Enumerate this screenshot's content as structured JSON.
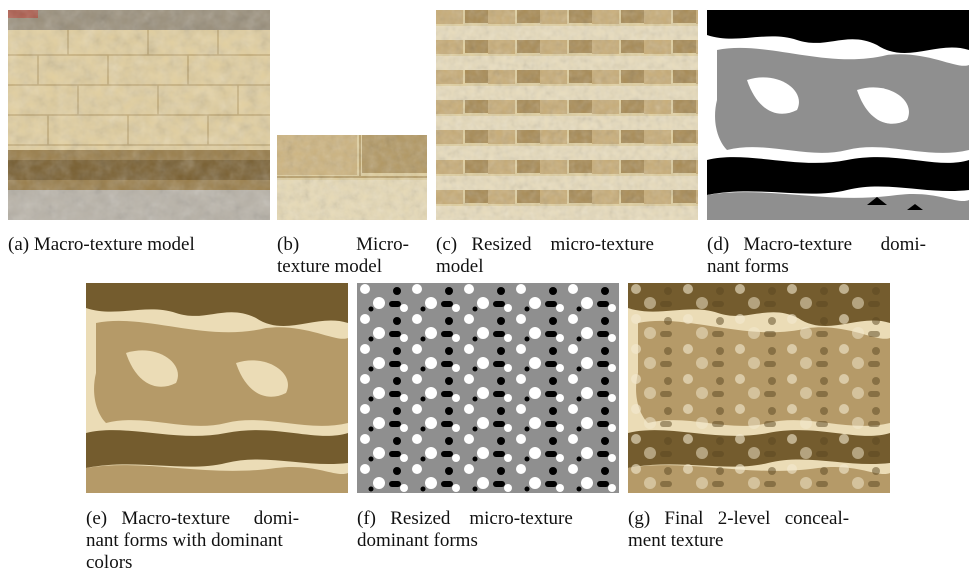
{
  "figure": {
    "panels": [
      {
        "id": "a",
        "caption": "(a) Macro-texture model",
        "lines": [
          "(a) Macro-texture model"
        ]
      },
      {
        "id": "b",
        "caption": "(b) Micro-texture model",
        "lines": [
          "(b)            Micro-",
          "texture model"
        ]
      },
      {
        "id": "c",
        "caption": "(c) Resized micro-texture model",
        "lines": [
          "(c)   Resized    micro-texture",
          "model"
        ]
      },
      {
        "id": "d",
        "caption": "(d) Macro-texture dominant forms",
        "lines": [
          "(d)   Macro-texture      domi-",
          "nant forms"
        ]
      },
      {
        "id": "e",
        "caption": "(e) Macro-texture dominant forms with dominant colors",
        "lines": [
          "(e)   Macro-texture     domi-",
          "nant forms with dominant",
          "colors"
        ]
      },
      {
        "id": "f",
        "caption": "(f) Resized micro-texture dominant forms",
        "lines": [
          "(f)   Resized    micro-texture",
          "dominant forms"
        ]
      },
      {
        "id": "g",
        "caption": "(g) Final 2-level concealment texture",
        "lines": [
          "(g)   Final   2-level   conceal-",
          "ment texture"
        ]
      }
    ]
  },
  "colors": {
    "stone_light": "#e6d6ae",
    "stone_mid": "#cdb37d",
    "stone_dark": "#8c6f3a",
    "moss": "#6b5326",
    "ground": "#b9b3a8",
    "gray_form": "#8f8f8f",
    "palette_light": "#ebdcb6",
    "palette_mid": "#b59a68",
    "palette_dark": "#745c2e"
  }
}
